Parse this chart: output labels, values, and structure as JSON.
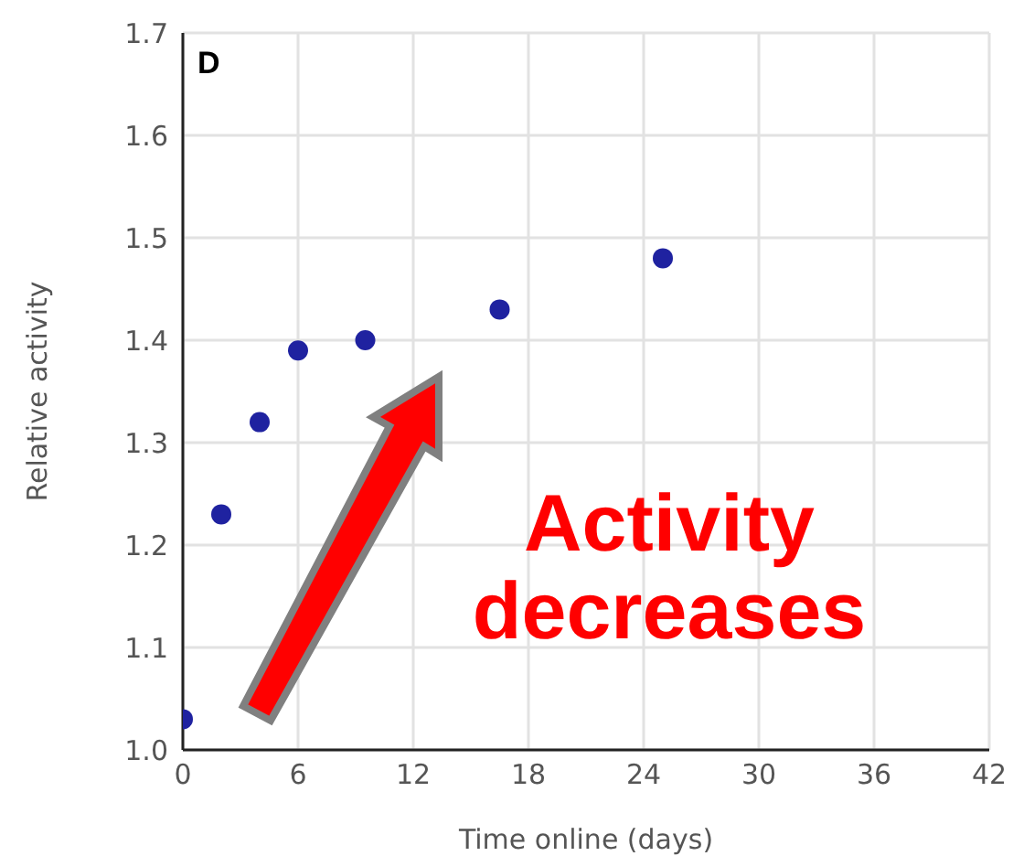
{
  "chart_data": {
    "type": "scatter",
    "xlabel": "Time online (days)",
    "ylabel": "Relative activity",
    "x": [
      0,
      2,
      4,
      6,
      9.5,
      16.5,
      25
    ],
    "series": [
      {
        "color": "#1f22a0",
        "values": [
          1.03,
          1.23,
          1.32,
          1.39,
          1.4,
          1.43,
          1.48
        ]
      }
    ],
    "xlim": [
      0,
      42
    ],
    "xticks": [
      0,
      6,
      12,
      18,
      24,
      30,
      36,
      42
    ],
    "ylim": [
      1.0,
      1.7
    ],
    "yticks": [
      {
        "value": 1.0,
        "label": "1.0"
      },
      {
        "value": 1.1,
        "label": "1.1"
      },
      {
        "value": 1.2,
        "label": "1.2"
      },
      {
        "value": 1.3,
        "label": "1.3"
      },
      {
        "value": 1.4,
        "label": "1.4"
      },
      {
        "value": 1.5,
        "label": "1.5"
      },
      {
        "value": 1.6,
        "label": "1.6"
      },
      {
        "value": 1.7,
        "label": "1.7"
      }
    ],
    "grid": true,
    "marker": "circle",
    "annotations": [
      "D",
      "Activity decreases"
    ]
  }
}
